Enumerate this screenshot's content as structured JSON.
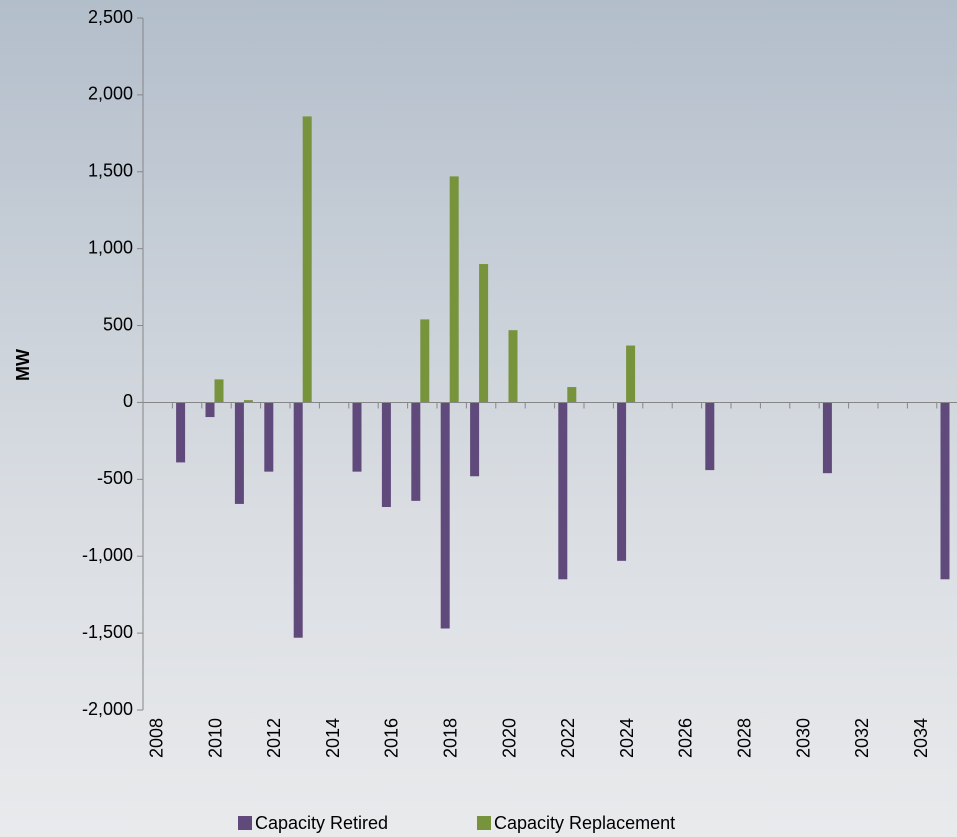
{
  "chart_data": {
    "type": "bar",
    "y_label": "MW",
    "categories": [
      "2008",
      null,
      "2010",
      null,
      "2012",
      null,
      "2014",
      null,
      "2016",
      null,
      "2018",
      null,
      "2020",
      null,
      "2022",
      null,
      "2024",
      null,
      "2026",
      null,
      "2028",
      null,
      "2030",
      null,
      "2032",
      null,
      "2034",
      null
    ],
    "series": [
      {
        "name": "Capacity Retired",
        "color": "#604a7b",
        "values": [
          0,
          -390,
          -95,
          -660,
          -450,
          -1530,
          0,
          -450,
          -680,
          -640,
          -1470,
          -480,
          0,
          0,
          -1150,
          0,
          -1030,
          0,
          0,
          -440,
          0,
          0,
          0,
          -460,
          0,
          0,
          0,
          -1150
        ]
      },
      {
        "name": "Capacity Replacement",
        "color": "#77933c",
        "values": [
          0,
          0,
          150,
          15,
          0,
          1860,
          0,
          0,
          0,
          540,
          1470,
          900,
          470,
          0,
          100,
          0,
          370,
          0,
          0,
          0,
          0,
          0,
          0,
          0,
          0,
          0,
          0,
          0
        ]
      }
    ],
    "ylim": [
      -2000,
      2500
    ],
    "yticks": [
      {
        "value": -2000,
        "label": "-2,000"
      },
      {
        "value": -1500,
        "label": "-1,500"
      },
      {
        "value": -1000,
        "label": "-1,000"
      },
      -500,
      0,
      500,
      {
        "value": 1000,
        "label": "1,000"
      },
      {
        "value": 1500,
        "label": "1,500"
      },
      {
        "value": 2000,
        "label": "2,000"
      },
      {
        "value": 2500,
        "label": "2,500"
      }
    ],
    "legend": "bottom"
  }
}
